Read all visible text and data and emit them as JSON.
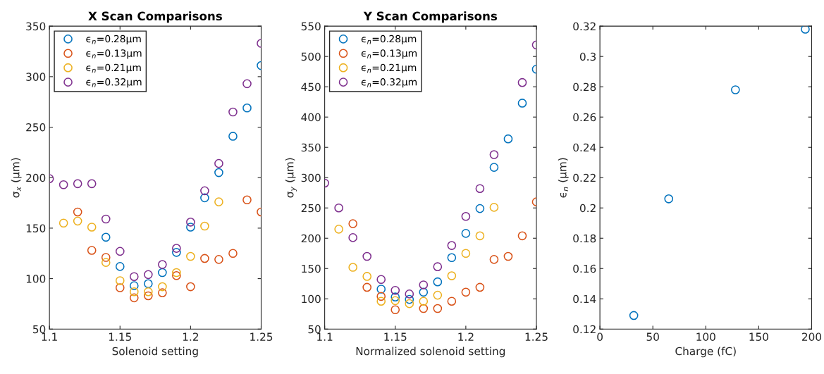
{
  "chart_data": [
    {
      "type": "scatter",
      "title": "X Scan Comparisons",
      "xlabel": "Solenoid setting",
      "ylabel": "σ$_{x}$ (μm)",
      "marker": "circle",
      "legend": "top left",
      "grid": false,
      "xlim": [
        1.1,
        1.25
      ],
      "xticks": [
        1.1,
        1.15,
        1.2,
        1.25
      ],
      "ylim": [
        50,
        350
      ],
      "yticks": [
        50,
        100,
        150,
        200,
        250,
        300,
        350
      ],
      "series": [
        {
          "name": "ϵ$_{n}$=0.28μm",
          "color": "#0072bd",
          "x": [
            1.14,
            1.15,
            1.16,
            1.17,
            1.18,
            1.19,
            1.2,
            1.21,
            1.22,
            1.23,
            1.24,
            1.25
          ],
          "values": [
            141,
            112,
            93,
            95,
            106,
            126,
            151,
            180,
            205,
            241,
            269,
            311
          ]
        },
        {
          "name": "ϵ$_{n}$=0.13μm",
          "color": "#d95319",
          "x": [
            1.12,
            1.13,
            1.14,
            1.15,
            1.16,
            1.17,
            1.18,
            1.19,
            1.2,
            1.21,
            1.22,
            1.23,
            1.24,
            1.25
          ],
          "values": [
            166,
            128,
            121,
            91,
            81,
            83,
            86,
            103,
            92,
            120,
            119,
            125,
            178,
            166
          ]
        },
        {
          "name": "ϵ$_{n}$=0.21μm",
          "color": "#edb120",
          "x": [
            1.11,
            1.12,
            1.13,
            1.14,
            1.15,
            1.16,
            1.17,
            1.18,
            1.19,
            1.2,
            1.21,
            1.22
          ],
          "values": [
            155,
            157,
            151,
            116,
            98,
            87,
            87,
            92,
            106,
            122,
            152,
            176
          ]
        },
        {
          "name": "ϵ$_{n}$=0.32μm",
          "color": "#7e2f8e",
          "x": [
            1.1,
            1.11,
            1.12,
            1.13,
            1.14,
            1.15,
            1.16,
            1.17,
            1.18,
            1.19,
            1.2,
            1.21,
            1.22,
            1.23,
            1.24,
            1.25
          ],
          "values": [
            199,
            193,
            194,
            194,
            159,
            127,
            102,
            104,
            114,
            130,
            156,
            187,
            214,
            265,
            293,
            333
          ]
        }
      ]
    },
    {
      "type": "scatter",
      "title": "Y Scan Comparisons",
      "xlabel": "Normalized solenoid setting",
      "ylabel": "σ$_{y}$ (μm)",
      "marker": "circle",
      "legend": "top left",
      "grid": false,
      "xlim": [
        1.1,
        1.25
      ],
      "xticks": [
        1.1,
        1.15,
        1.2,
        1.25
      ],
      "ylim": [
        50,
        550
      ],
      "yticks": [
        50,
        100,
        150,
        200,
        250,
        300,
        350,
        400,
        450,
        500,
        550
      ],
      "series": [
        {
          "name": "ϵ$_{n}$=0.28μm",
          "color": "#0072bd",
          "x": [
            1.14,
            1.15,
            1.16,
            1.17,
            1.18,
            1.19,
            1.2,
            1.21,
            1.22,
            1.23,
            1.24,
            1.25
          ],
          "values": [
            116,
            103,
            99,
            111,
            128,
            168,
            208,
            249,
            317,
            364,
            423,
            479
          ]
        },
        {
          "name": "ϵ$_{n}$=0.13μm",
          "color": "#d95319",
          "x": [
            1.12,
            1.13,
            1.14,
            1.15,
            1.17,
            1.18,
            1.19,
            1.2,
            1.21,
            1.22,
            1.23,
            1.24,
            1.25
          ],
          "values": [
            224,
            119,
            104,
            82,
            84,
            84,
            96,
            111,
            119,
            165,
            170,
            204,
            260
          ]
        },
        {
          "name": "ϵ$_{n}$=0.21μm",
          "color": "#edb120",
          "x": [
            1.11,
            1.12,
            1.13,
            1.14,
            1.15,
            1.16,
            1.17,
            1.18,
            1.19,
            1.2,
            1.21,
            1.22
          ],
          "values": [
            215,
            152,
            137,
            96,
            97,
            92,
            96,
            106,
            138,
            175,
            204,
            251
          ]
        },
        {
          "name": "ϵ$_{n}$=0.32μm",
          "color": "#7e2f8e",
          "x": [
            1.1,
            1.11,
            1.12,
            1.13,
            1.14,
            1.15,
            1.16,
            1.17,
            1.18,
            1.19,
            1.2,
            1.21,
            1.22,
            1.24,
            1.25
          ],
          "values": [
            291,
            250,
            201,
            170,
            132,
            114,
            108,
            123,
            153,
            188,
            236,
            282,
            338,
            457,
            519
          ]
        }
      ]
    },
    {
      "type": "scatter",
      "xlabel": "Charge (fC)",
      "ylabel": "ϵ$_{n}$ (μm)",
      "marker": "circle",
      "grid": false,
      "xlim": [
        0,
        200
      ],
      "xticks": [
        0,
        50,
        100,
        150,
        200
      ],
      "ylim": [
        0.12,
        0.32
      ],
      "yticks": [
        0.12,
        0.14,
        0.16,
        0.18,
        0.2,
        0.22,
        0.24,
        0.26,
        0.28,
        0.3,
        0.32
      ],
      "series": [
        {
          "color": "#0072bd",
          "x": [
            32,
            65,
            128,
            194
          ],
          "values": [
            0.129,
            0.206,
            0.278,
            0.318
          ]
        }
      ]
    }
  ]
}
